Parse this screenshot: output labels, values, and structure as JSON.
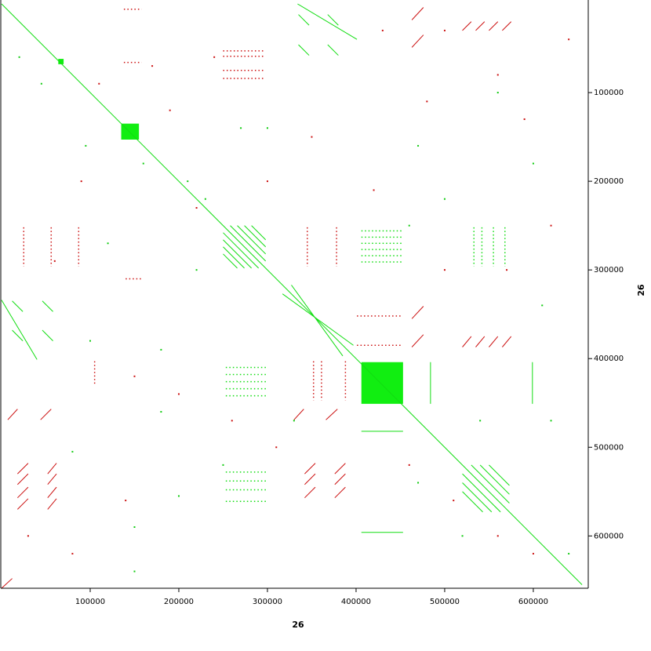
{
  "chart_data": {
    "type": "dotplot",
    "x_label": "26",
    "y_label": "26",
    "xlim": [
      0,
      662000
    ],
    "ylim": [
      0,
      659000
    ],
    "y_inverted": true,
    "xticks": [
      100000,
      200000,
      300000,
      400000,
      500000,
      600000
    ],
    "yticks": [
      100000,
      200000,
      300000,
      400000,
      500000,
      600000
    ],
    "blocks": {
      "color": "#11ee11",
      "x1": [
        406000,
        135000,
        64000
      ],
      "y1": [
        404000,
        135000,
        62000
      ],
      "x2": [
        453000,
        155000,
        70000
      ],
      "y2": [
        451000,
        153000,
        68000
      ]
    },
    "segments": [
      {
        "color": "#11dd11",
        "dashed": false,
        "x1": [
          0,
          334000,
          0,
          317000,
          327000,
          12000,
          46000,
          12000,
          46000,
          335000,
          335000,
          368000,
          368000,
          406000,
          406000,
          484000,
          599000,
          258000,
          266000,
          274000,
          282000,
          250000,
          250000,
          250000,
          250000,
          530000,
          540000,
          550000,
          520000,
          520000,
          520000
        ],
        "y1": [
          0,
          0,
          334000,
          327000,
          317000,
          335000,
          335000,
          368000,
          368000,
          12000,
          46000,
          12000,
          46000,
          482000,
          596000,
          404000,
          404000,
          250000,
          250000,
          250000,
          250000,
          258000,
          266000,
          274000,
          282000,
          520000,
          520000,
          520000,
          530000,
          540000,
          550000
        ],
        "x2": [
          655000,
          401000,
          40000,
          397000,
          385000,
          24000,
          58000,
          24000,
          58000,
          347000,
          347000,
          380000,
          380000,
          453000,
          453000,
          484000,
          599000,
          298000,
          298000,
          298000,
          298000,
          290000,
          282000,
          274000,
          266000,
          573000,
          573000,
          573000,
          563000,
          553000,
          543000
        ],
        "y2": [
          655000,
          40000,
          401000,
          385000,
          397000,
          347000,
          347000,
          380000,
          380000,
          24000,
          58000,
          24000,
          58000,
          482000,
          596000,
          451000,
          451000,
          290000,
          282000,
          274000,
          266000,
          298000,
          298000,
          298000,
          298000,
          563000,
          553000,
          543000,
          573000,
          573000,
          573000
        ]
      },
      {
        "color": "#11dd11",
        "dashed": true,
        "x1": [
          406000,
          406000,
          406000,
          406000,
          406000,
          406000,
          253000,
          253000,
          253000,
          253000,
          253000,
          253000,
          253000,
          253000,
          253000,
          533000,
          542000,
          555000,
          568000
        ],
        "y1": [
          256000,
          263000,
          270000,
          277000,
          284000,
          291000,
          410000,
          418000,
          426000,
          434000,
          442000,
          528000,
          538000,
          548000,
          561000,
          252000,
          252000,
          252000,
          252000
        ],
        "x2": [
          453000,
          453000,
          453000,
          453000,
          453000,
          453000,
          299000,
          299000,
          299000,
          299000,
          299000,
          299000,
          299000,
          299000,
          299000,
          533000,
          542000,
          555000,
          568000
        ],
        "y2": [
          256000,
          263000,
          270000,
          277000,
          284000,
          291000,
          410000,
          418000,
          426000,
          434000,
          442000,
          528000,
          538000,
          548000,
          561000,
          296000,
          296000,
          296000,
          296000
        ]
      },
      {
        "color": "#cc1111",
        "dashed": false,
        "x1": [
          463000,
          463000,
          463000,
          463000,
          7000,
          44000,
          330000,
          366000,
          0,
          18000,
          18000,
          18000,
          18000,
          52000,
          52000,
          52000,
          52000,
          342000,
          342000,
          342000,
          376000,
          376000,
          376000,
          520000,
          535000,
          550000,
          565000,
          520000,
          535000,
          550000,
          565000
        ],
        "y1": [
          18000,
          49000,
          355000,
          387000,
          469000,
          469000,
          469000,
          469000,
          659000,
          530000,
          542000,
          557000,
          570000,
          530000,
          542000,
          557000,
          570000,
          530000,
          542000,
          557000,
          530000,
          542000,
          557000,
          30000,
          30000,
          30000,
          30000,
          387000,
          387000,
          387000,
          387000
        ],
        "x2": [
          476000,
          476000,
          476000,
          476000,
          18000,
          56000,
          341000,
          379000,
          12000,
          30000,
          30000,
          30000,
          30000,
          62000,
          62000,
          62000,
          62000,
          354000,
          354000,
          354000,
          388000,
          388000,
          388000,
          530000,
          545000,
          560000,
          575000,
          530000,
          545000,
          560000,
          575000
        ],
        "y2": [
          4000,
          35000,
          341000,
          373000,
          457000,
          457000,
          457000,
          457000,
          648000,
          518000,
          530000,
          545000,
          558000,
          518000,
          530000,
          545000,
          558000,
          518000,
          530000,
          545000,
          518000,
          530000,
          545000,
          20000,
          20000,
          20000,
          20000,
          375000,
          375000,
          375000,
          375000
        ]
      },
      {
        "color": "#cc1111",
        "dashed": true,
        "x1": [
          138000,
          138000,
          401000,
          401000,
          250000,
          250000,
          250000,
          250000,
          140000,
          25000,
          56000,
          87000,
          345000,
          378000,
          352000,
          361000,
          388000,
          105000
        ],
        "y1": [
          6000,
          66000,
          352000,
          385000,
          53000,
          59000,
          75000,
          84000,
          310000,
          252000,
          252000,
          252000,
          252000,
          252000,
          403000,
          403000,
          403000,
          403000
        ],
        "x2": [
          158000,
          158000,
          452000,
          452000,
          297000,
          297000,
          297000,
          297000,
          158000,
          25000,
          56000,
          87000,
          345000,
          378000,
          352000,
          361000,
          388000,
          105000
        ],
        "y2": [
          6000,
          66000,
          352000,
          385000,
          53000,
          59000,
          75000,
          84000,
          310000,
          296000,
          296000,
          296000,
          296000,
          296000,
          447000,
          447000,
          447000,
          430000
        ]
      }
    ],
    "points": [
      {
        "color": "#11cc11",
        "x": [
          95000,
          160000,
          210000,
          230000,
          180000,
          300000,
          45000,
          120000,
          470000,
          500000,
          560000,
          600000,
          620000,
          250000,
          150000,
          80000,
          200000,
          330000,
          470000,
          640000,
          520000,
          20000,
          100000,
          270000,
          180000,
          460000,
          540000,
          610000,
          150000,
          220000
        ],
        "y": [
          160000,
          180000,
          200000,
          220000,
          390000,
          140000,
          90000,
          270000,
          160000,
          220000,
          100000,
          180000,
          470000,
          520000,
          590000,
          505000,
          555000,
          470000,
          540000,
          620000,
          600000,
          60000,
          380000,
          140000,
          460000,
          250000,
          470000,
          340000,
          640000,
          300000
        ]
      },
      {
        "color": "#cc1111",
        "x": [
          110000,
          190000,
          240000,
          300000,
          430000,
          480000,
          500000,
          560000,
          590000,
          620000,
          60000,
          90000,
          150000,
          200000,
          260000,
          310000,
          460000,
          510000,
          560000,
          600000,
          30000,
          170000,
          220000,
          500000,
          640000,
          80000,
          140000,
          350000,
          420000,
          570000
        ],
        "y": [
          90000,
          120000,
          60000,
          200000,
          30000,
          110000,
          300000,
          80000,
          130000,
          250000,
          290000,
          200000,
          420000,
          440000,
          470000,
          500000,
          520000,
          560000,
          600000,
          620000,
          600000,
          70000,
          230000,
          30000,
          40000,
          620000,
          560000,
          150000,
          210000,
          300000
        ]
      }
    ]
  }
}
